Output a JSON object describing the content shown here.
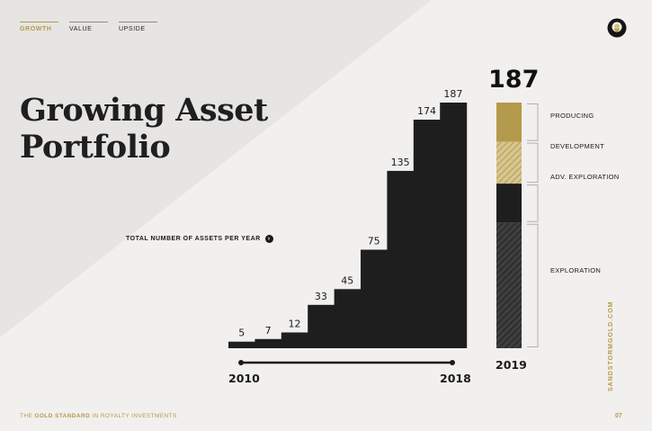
{
  "nav": {
    "tabs": [
      {
        "label": "GROWTH",
        "active": true
      },
      {
        "label": "VALUE",
        "active": false
      },
      {
        "label": "UPSIDE",
        "active": false
      }
    ]
  },
  "logo": {
    "icon": "lightbulb-logo-icon"
  },
  "title_line1": "Growing Asset",
  "title_line2": "Portfolio",
  "total_label": "TOTAL NUMBER OF ASSETS PER YEAR",
  "colors": {
    "gold": "#b49a4c",
    "dark": "#1e1e1e",
    "background": "#f1f0ee"
  },
  "chart_data": [
    {
      "type": "bar",
      "values": [
        5,
        7,
        12,
        33,
        45,
        75,
        135,
        174,
        187
      ],
      "x_start_label": "2010",
      "x_end_label": "2018"
    },
    {
      "type": "bar",
      "stacked": true,
      "total": "187",
      "x_label": "2019",
      "segments": [
        {
          "name": "PRODUCING",
          "share": 0.16,
          "color": "#b49a4c",
          "pattern": "solid"
        },
        {
          "name": "DEVELOPMENT",
          "share": 0.17,
          "color": "#b49a4c",
          "pattern": "hatched"
        },
        {
          "name": "ADV. EXPLORATION",
          "share": 0.16,
          "color": "#1e1e1e",
          "pattern": "solid"
        },
        {
          "name": "EXPLORATION",
          "share": 0.51,
          "color": "#1e1e1e",
          "pattern": "hatched"
        }
      ]
    }
  ],
  "side_url": "SANDSTORMGOLD.COM",
  "footer": {
    "prefix": "THE ",
    "bold": "GOLD STANDARD",
    "suffix": " IN ROYALTY INVESTMENTS"
  },
  "page_number": "07"
}
